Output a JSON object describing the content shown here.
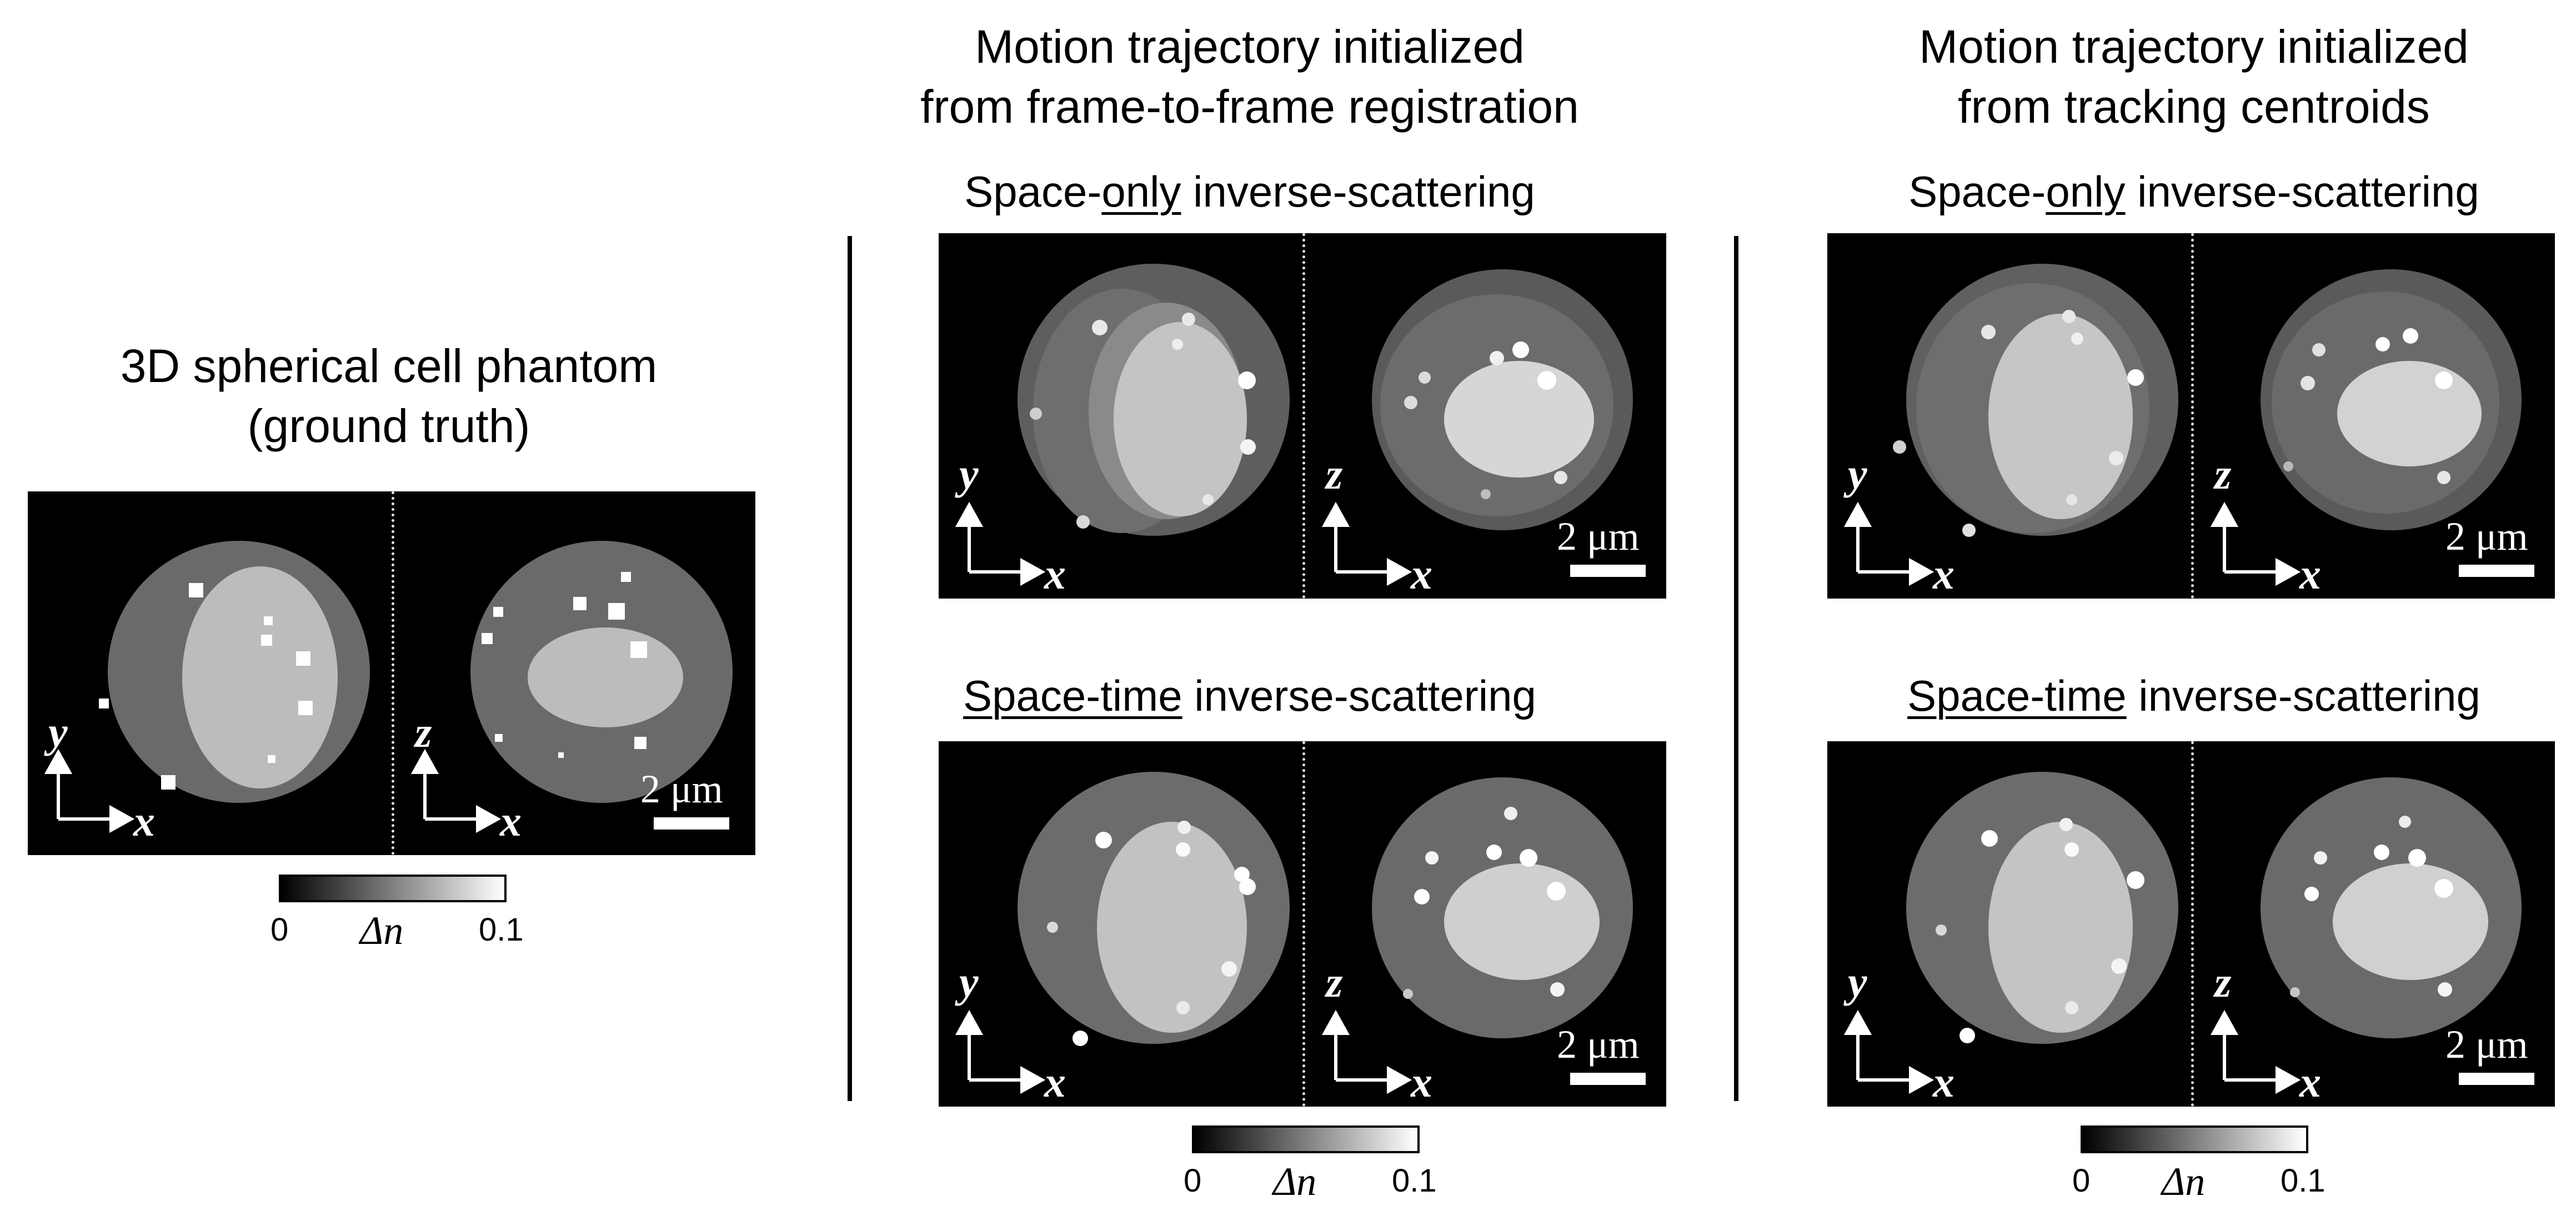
{
  "ground_truth": {
    "title_line1": "3D spherical cell phantom",
    "title_line2": "(ground truth)"
  },
  "column_registration": {
    "title_line1": "Motion trajectory initialized",
    "title_line2": "from frame-to-frame registration"
  },
  "column_centroids": {
    "title_line1": "Motion trajectory initialized",
    "title_line2": "from tracking centroids"
  },
  "row_space_only": {
    "prefix": "Space-",
    "underlined": "only",
    "suffix": " inverse-scattering"
  },
  "row_space_time": {
    "underlined": "Space-time",
    "suffix": " inverse-scattering"
  },
  "axes": {
    "y": "y",
    "z": "z",
    "x": "x"
  },
  "scale_bar_label": "2 μm",
  "colorbar": {
    "min_label": "0",
    "max_label": "0.1",
    "quantity": "Δn",
    "colors": [
      "#000000",
      "#ffffff"
    ]
  }
}
